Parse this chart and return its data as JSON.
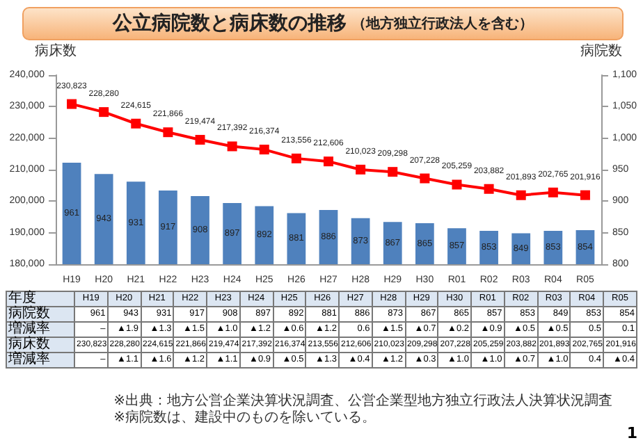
{
  "chart_data": {
    "type": "bar",
    "title": "公立病院数と病床数の推移",
    "subtitle": "（地方独立行政法人を含む）",
    "ylabel": "病床数",
    "y2label": "病院数",
    "categories": [
      "H19",
      "H20",
      "H21",
      "H22",
      "H23",
      "H24",
      "H25",
      "H26",
      "H27",
      "H28",
      "H29",
      "H30",
      "R01",
      "R02",
      "R03",
      "R04",
      "R05"
    ],
    "series": [
      {
        "axis": "y2",
        "color": "#4f81bd",
        "values": [
          961,
          943,
          931,
          917,
          908,
          897,
          892,
          881,
          886,
          873,
          867,
          865,
          857,
          853,
          849,
          853,
          854
        ],
        "value_labels": [
          "961",
          "943",
          "931",
          "917",
          "908",
          "897",
          "892",
          "881",
          "886",
          "873",
          "867",
          "865",
          "857",
          "853",
          "849",
          "853",
          "854"
        ]
      },
      {
        "type": "line",
        "color": "#ff0000",
        "values": [
          230823,
          228280,
          224615,
          221866,
          219474,
          217392,
          216374,
          213556,
          212606,
          210023,
          209298,
          207228,
          205259,
          203882,
          201893,
          202765,
          201916
        ],
        "value_labels": [
          "230,823",
          "228,280",
          "224,615",
          "221,866",
          "219,474",
          "217,392",
          "216,374",
          "213,556",
          "212,606",
          "210,023",
          "209,298",
          "207,228",
          "205,259",
          "203,882",
          "201,893",
          "202,765",
          "201,916"
        ]
      }
    ],
    "ylim": [
      180000,
      240000
    ],
    "yticks": [
      {
        "value": 180000,
        "label": "180,000"
      },
      {
        "value": 190000,
        "label": "190,000"
      },
      {
        "value": 200000,
        "label": "200,000"
      },
      {
        "value": 210000,
        "label": "210,000"
      },
      {
        "value": 220000,
        "label": "220,000"
      },
      {
        "value": 230000,
        "label": "230,000"
      },
      {
        "value": 240000,
        "label": "240,000"
      }
    ],
    "y2lim": [
      800,
      1100
    ],
    "y2ticks": [
      800,
      850,
      900,
      950,
      {
        "value": 1000,
        "label": "1,000"
      },
      {
        "value": 1050,
        "label": "1,050"
      },
      {
        "value": 1100,
        "label": "1,100"
      }
    ],
    "grid": false,
    "marker": "square",
    "annotations": [
      "年度",
      "増減率",
      "–",
      "▲1.9",
      "▲1.3",
      "▲1.5",
      "▲1.0",
      "▲1.2",
      "▲0.6",
      "▲1.2",
      "0.6",
      "▲1.5",
      "▲0.7",
      "▲0.2",
      "▲0.9",
      "▲0.5",
      "▲0.5",
      "0.5",
      "0.1",
      "–",
      "▲1.1",
      "▲1.6",
      "▲1.2",
      "▲1.1",
      "▲0.9",
      "▲0.5",
      "▲1.3",
      "▲0.4",
      "▲1.2",
      "▲0.3",
      "▲1.0",
      "▲1.0",
      "▲0.7",
      "▲1.0",
      "0.4",
      "▲0.4",
      "※出典：地方公営企業決算状況調査、公営企業型地方独立行政法人決算状況調査",
      "※病院数は、建設中のものを除いている。",
      "1"
    ]
  }
}
